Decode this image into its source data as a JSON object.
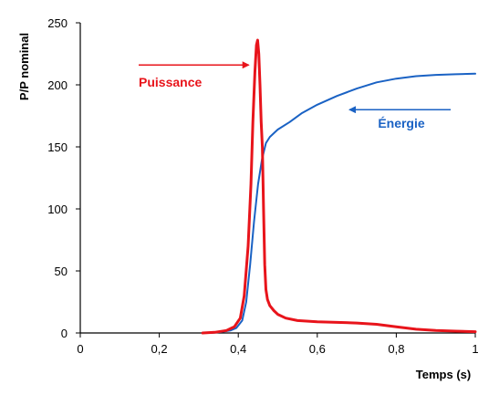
{
  "chart_data": {
    "type": "line",
    "title": "",
    "xlabel": "Temps (s)",
    "ylabel": "P/P nominal",
    "xlim": [
      0,
      1
    ],
    "ylim": [
      0,
      250
    ],
    "x_ticks": [
      0,
      0.2,
      0.4,
      0.6,
      0.8,
      1
    ],
    "x_tick_labels": [
      "0",
      "0,2",
      "0,4",
      "0,6",
      "0,8",
      "1"
    ],
    "y_ticks": [
      0,
      50,
      100,
      150,
      200,
      250
    ],
    "y_tick_labels": [
      "0",
      "50",
      "100",
      "150",
      "200",
      "250"
    ],
    "grid": false,
    "legend": "none",
    "series": [
      {
        "name": "Puissance",
        "color": "#e8141b",
        "x": [
          0.31,
          0.34,
          0.37,
          0.39,
          0.405,
          0.415,
          0.425,
          0.432,
          0.437,
          0.442,
          0.446,
          0.449,
          0.452,
          0.455,
          0.458,
          0.461,
          0.464,
          0.467,
          0.47,
          0.474,
          0.48,
          0.49,
          0.5,
          0.52,
          0.55,
          0.6,
          0.65,
          0.7,
          0.75,
          0.8,
          0.85,
          0.9,
          0.95,
          1.0
        ],
        "y": [
          0,
          0.5,
          2,
          5,
          12,
          30,
          70,
          120,
          170,
          210,
          232,
          236,
          225,
          200,
          170,
          150,
          100,
          55,
          35,
          27,
          22,
          18,
          15,
          12,
          10,
          9,
          8.5,
          8,
          7,
          5,
          3,
          2,
          1.5,
          1
        ]
      },
      {
        "name": "Énergie",
        "color": "#1a62c4",
        "x": [
          0.33,
          0.36,
          0.38,
          0.395,
          0.41,
          0.42,
          0.43,
          0.44,
          0.45,
          0.46,
          0.47,
          0.48,
          0.5,
          0.53,
          0.56,
          0.6,
          0.65,
          0.7,
          0.75,
          0.8,
          0.85,
          0.9,
          0.95,
          1.0
        ],
        "y": [
          0,
          1,
          2,
          4,
          10,
          25,
          55,
          90,
          120,
          140,
          153,
          158,
          164,
          170,
          177,
          184,
          191,
          197,
          202,
          205,
          207,
          208,
          208.5,
          209
        ]
      }
    ],
    "annotations": [
      {
        "text": "Puissance",
        "series": "Puissance",
        "arrow_to_x": 0.445,
        "arrow_to_y": 216,
        "label_x": 0.15,
        "label_y": 205
      },
      {
        "text": "Énergie",
        "series": "Énergie",
        "arrow_to_x": 0.68,
        "arrow_to_y": 180,
        "label_x": 0.755,
        "label_y": 170
      }
    ]
  }
}
